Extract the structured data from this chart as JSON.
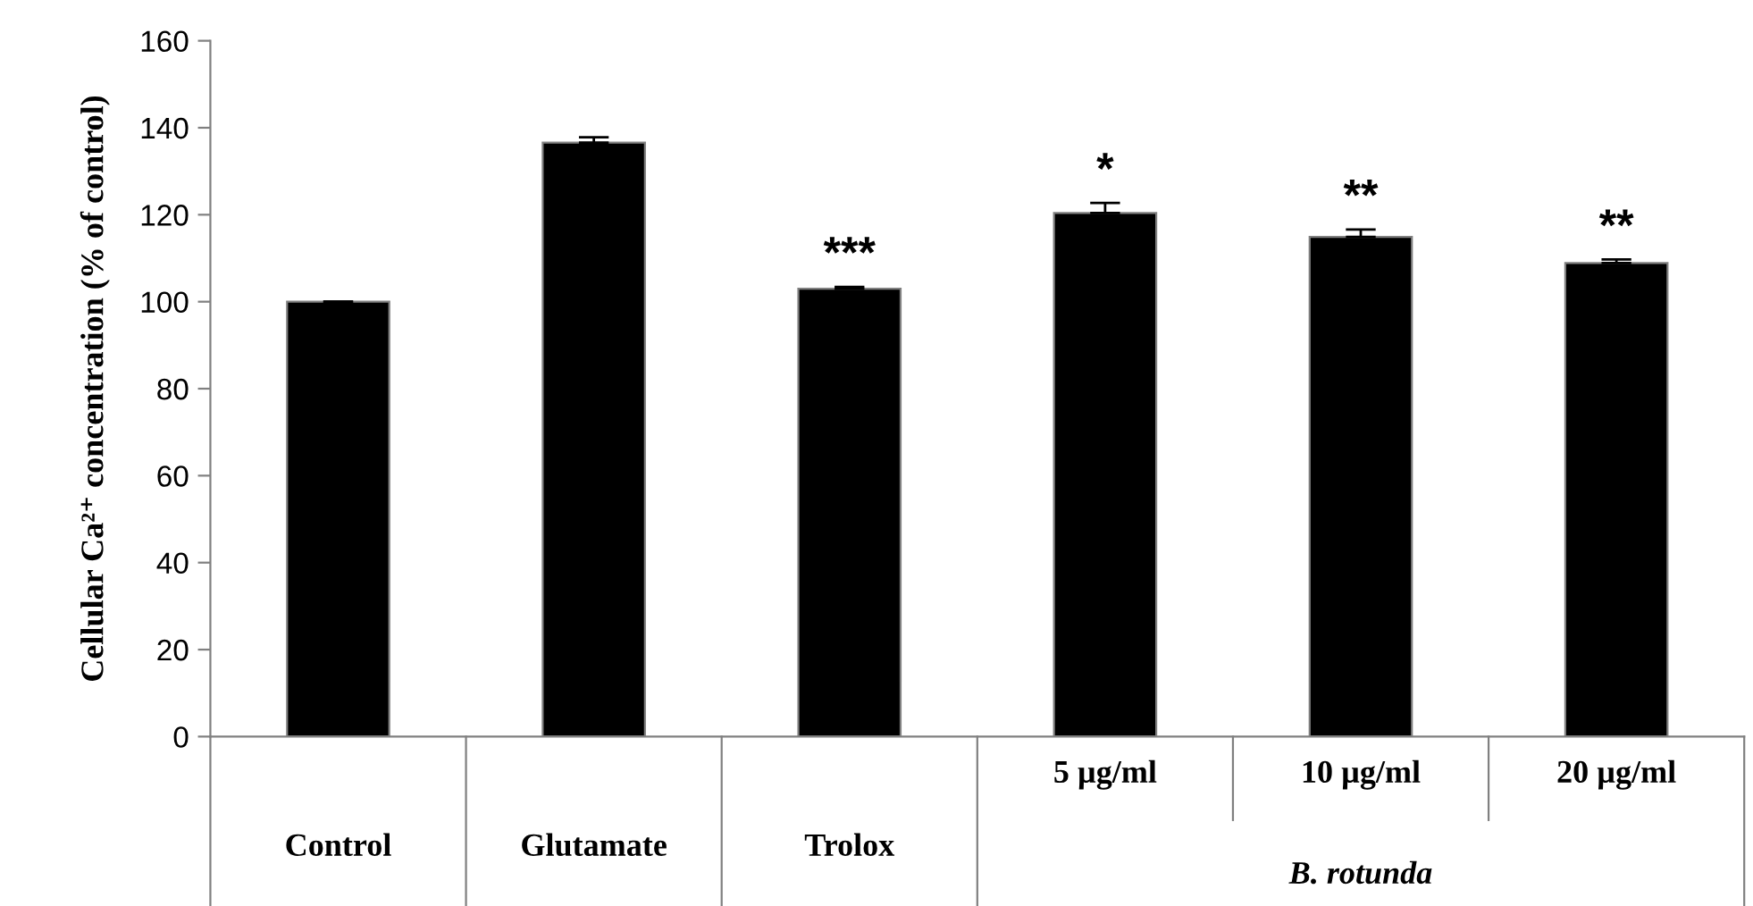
{
  "chart_data": {
    "type": "bar",
    "ylabel": "Cellular Ca²⁺ concentration (% of control)",
    "categories": [
      "Control",
      "Glutamate",
      "Trolox",
      "5 µg/ml",
      "10 µg/ml",
      "20 µg/ml"
    ],
    "values": [
      100,
      136.6,
      103.0,
      120.4,
      114.9,
      108.9
    ],
    "errors": [
      null,
      1.2,
      0.4,
      2.3,
      1.7,
      0.8
    ],
    "color": "#000000",
    "ylim": [
      0,
      160
    ],
    "yticks": [
      0,
      20,
      40,
      60,
      80,
      100,
      120,
      140,
      160
    ],
    "grid": false,
    "legend": false,
    "annotations": [
      {
        "text": "***",
        "x": "Trolox",
        "y": 103.0
      },
      {
        "text": "*",
        "x": "5 µg/ml",
        "y": 120.4
      },
      {
        "text": "**",
        "x": "10 µg/ml",
        "y": 114.9
      },
      {
        "text": "**",
        "x": "20 µg/ml",
        "y": 108.9
      },
      "B. rotunda"
    ]
  }
}
